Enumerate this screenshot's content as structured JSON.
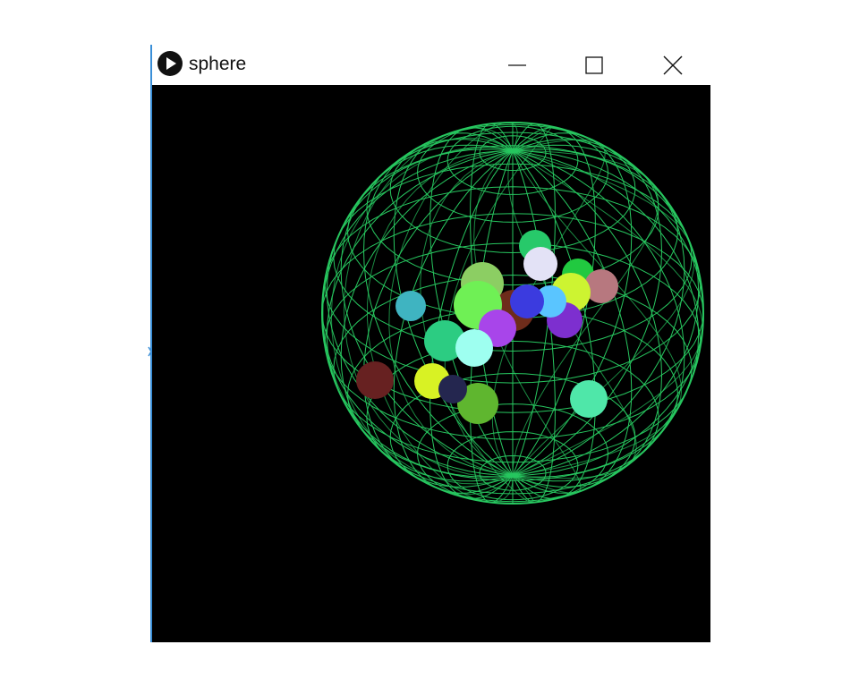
{
  "window": {
    "title": "sphere",
    "icon": "play-icon",
    "controls": [
      "minimize-icon",
      "maximize-icon",
      "close-icon"
    ]
  },
  "scene": {
    "background": "#000000",
    "wireframe_color": "#27c65f",
    "ball_colors": [
      "#27c96a",
      "#e3e2f6",
      "#21c940",
      "#b7787f",
      "#cdf431",
      "#3fb4c1",
      "#8cce63",
      "#7d2fcf",
      "#6e2c1b",
      "#5ac5ff",
      "#3b3bdf",
      "#6ff055",
      "#a845ea",
      "#2ccc82",
      "#9efff0",
      "#672121",
      "#d8f224",
      "#5fb62f",
      "#4fe7a9",
      "#24264f"
    ]
  }
}
